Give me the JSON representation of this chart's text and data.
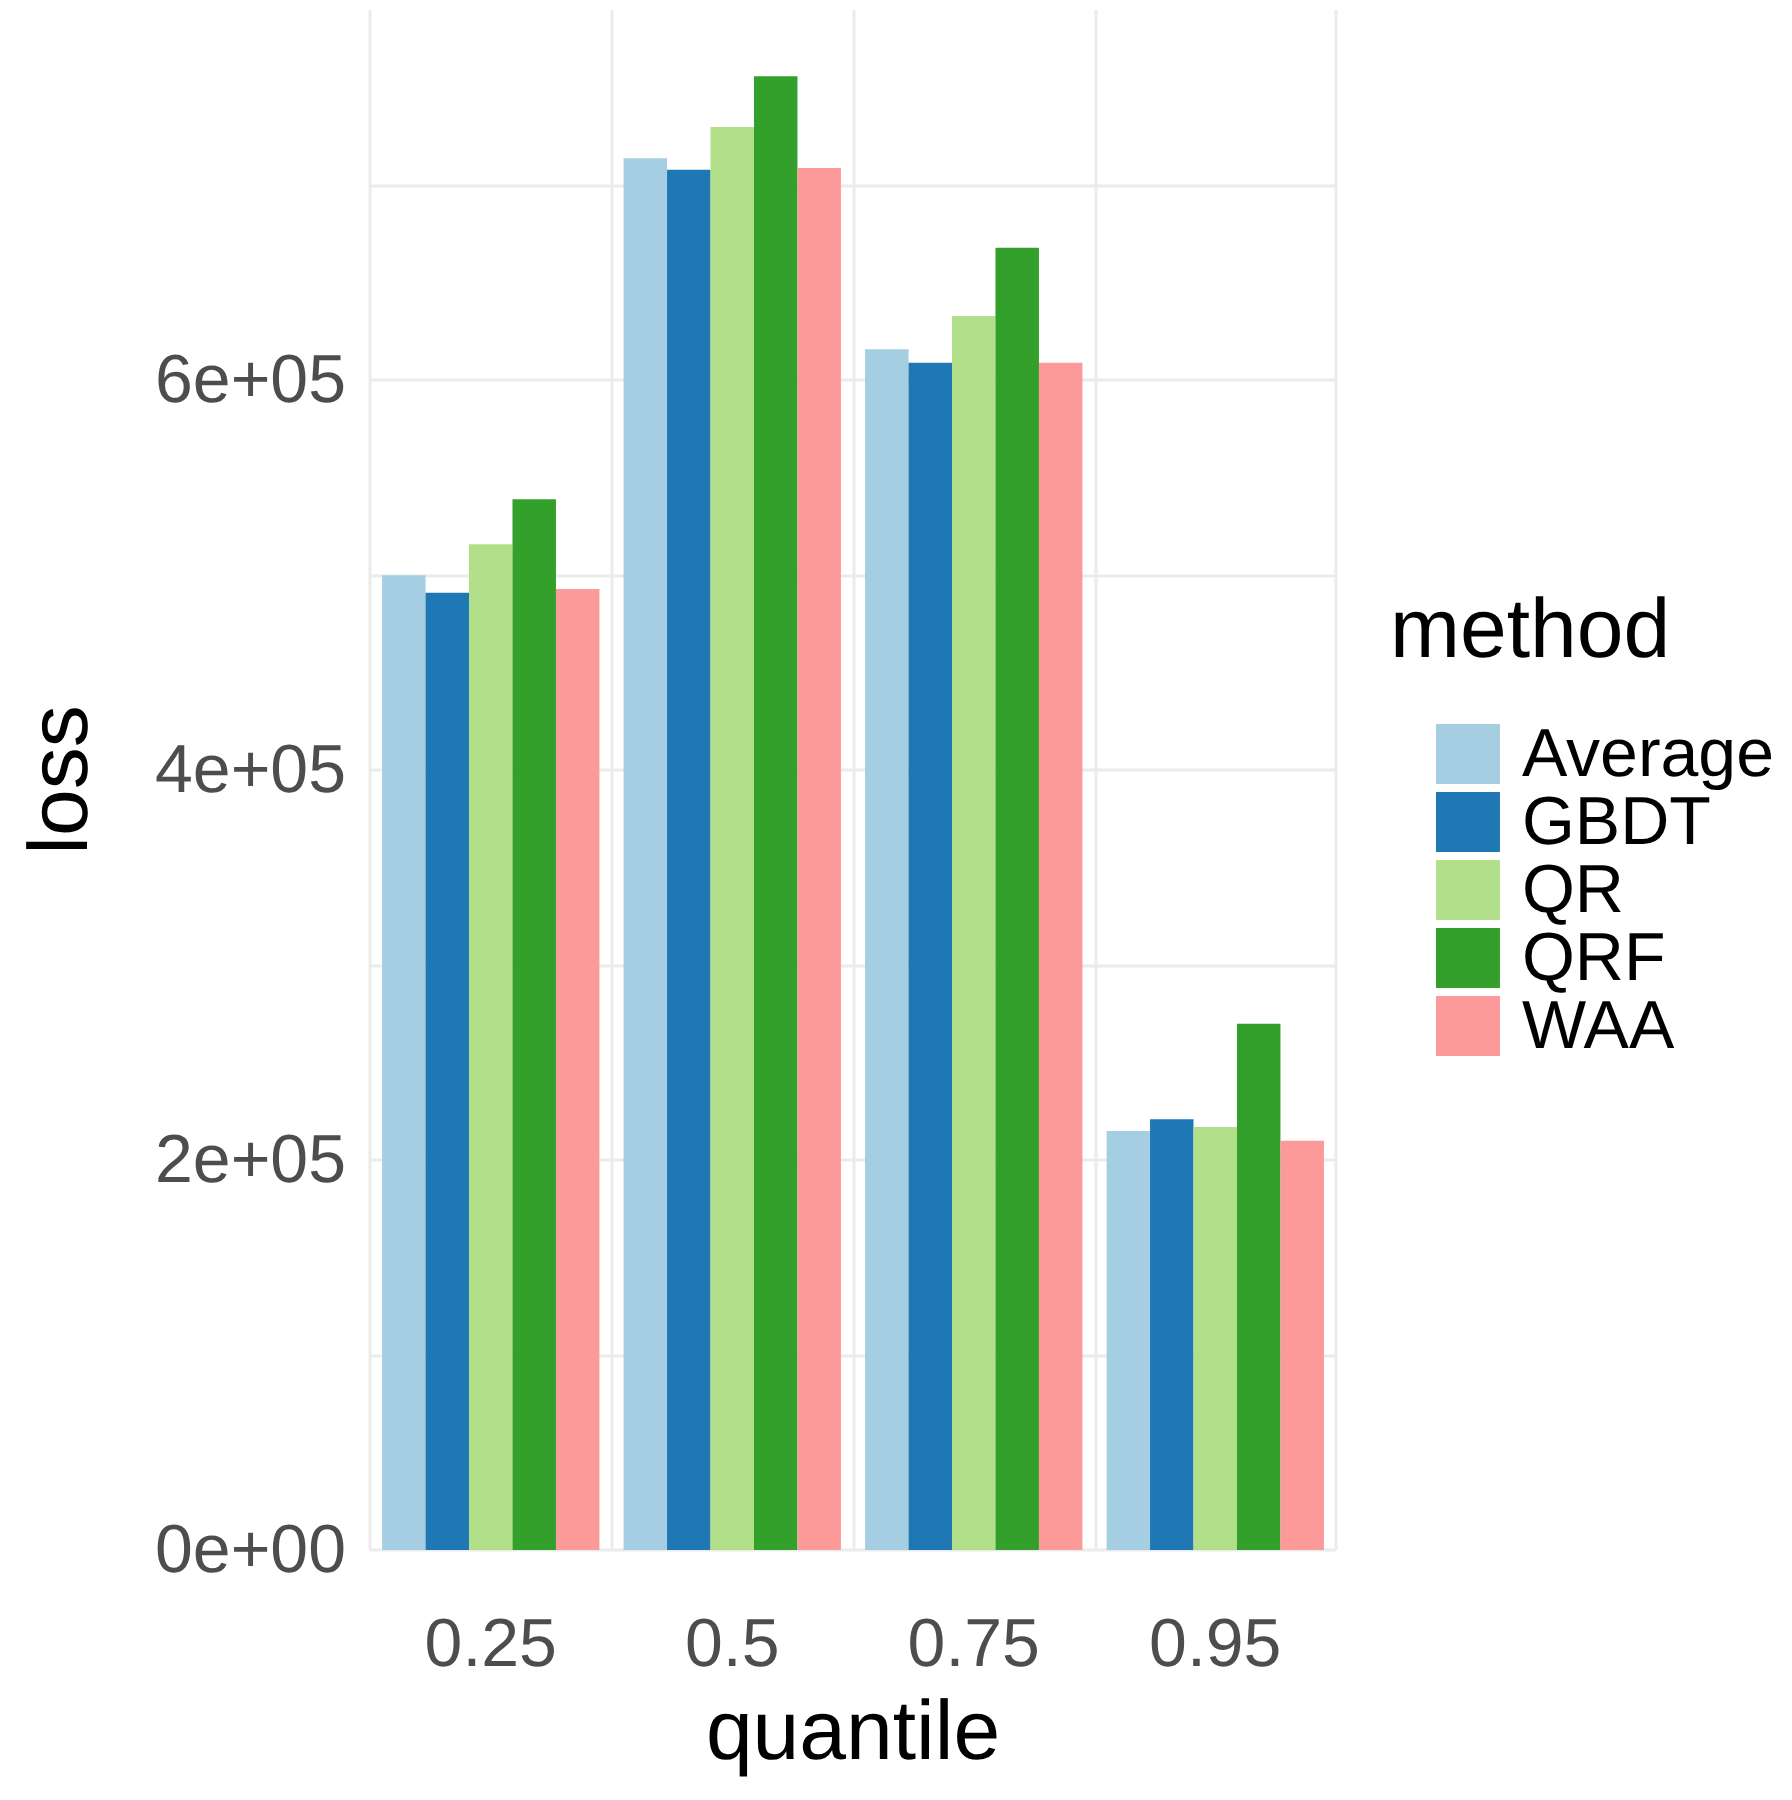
{
  "chart_data": {
    "type": "bar",
    "xlabel": "quantile",
    "ylabel": "loss",
    "legend_title": "method",
    "categories": [
      "0.25",
      "0.5",
      "0.75",
      "0.95"
    ],
    "series": [
      {
        "name": "Average",
        "color": "#a6cee3",
        "values": [
          500000,
          714000,
          616000,
          215000
        ]
      },
      {
        "name": "GBDT",
        "color": "#1f78b4",
        "values": [
          491000,
          708000,
          609000,
          221000
        ]
      },
      {
        "name": "QR",
        "color": "#b2df8a",
        "values": [
          516000,
          730000,
          633000,
          217000
        ]
      },
      {
        "name": "QRF",
        "color": "#33a02c",
        "values": [
          539000,
          756000,
          668000,
          270000
        ]
      },
      {
        "name": "WAA",
        "color": "#fb9a99",
        "values": [
          493000,
          709000,
          609000,
          210000
        ]
      }
    ],
    "ylim": [
      0,
      790000
    ],
    "yticks": [
      {
        "value": 0,
        "label": "0e+00"
      },
      {
        "value": 100000,
        "label": null
      },
      {
        "value": 200000,
        "label": "2e+05"
      },
      {
        "value": 300000,
        "label": null
      },
      {
        "value": 400000,
        "label": "4e+05"
      },
      {
        "value": 500000,
        "label": null
      },
      {
        "value": 600000,
        "label": "6e+05"
      },
      {
        "value": 700000,
        "label": null
      }
    ],
    "grid": true,
    "legend": "right"
  }
}
